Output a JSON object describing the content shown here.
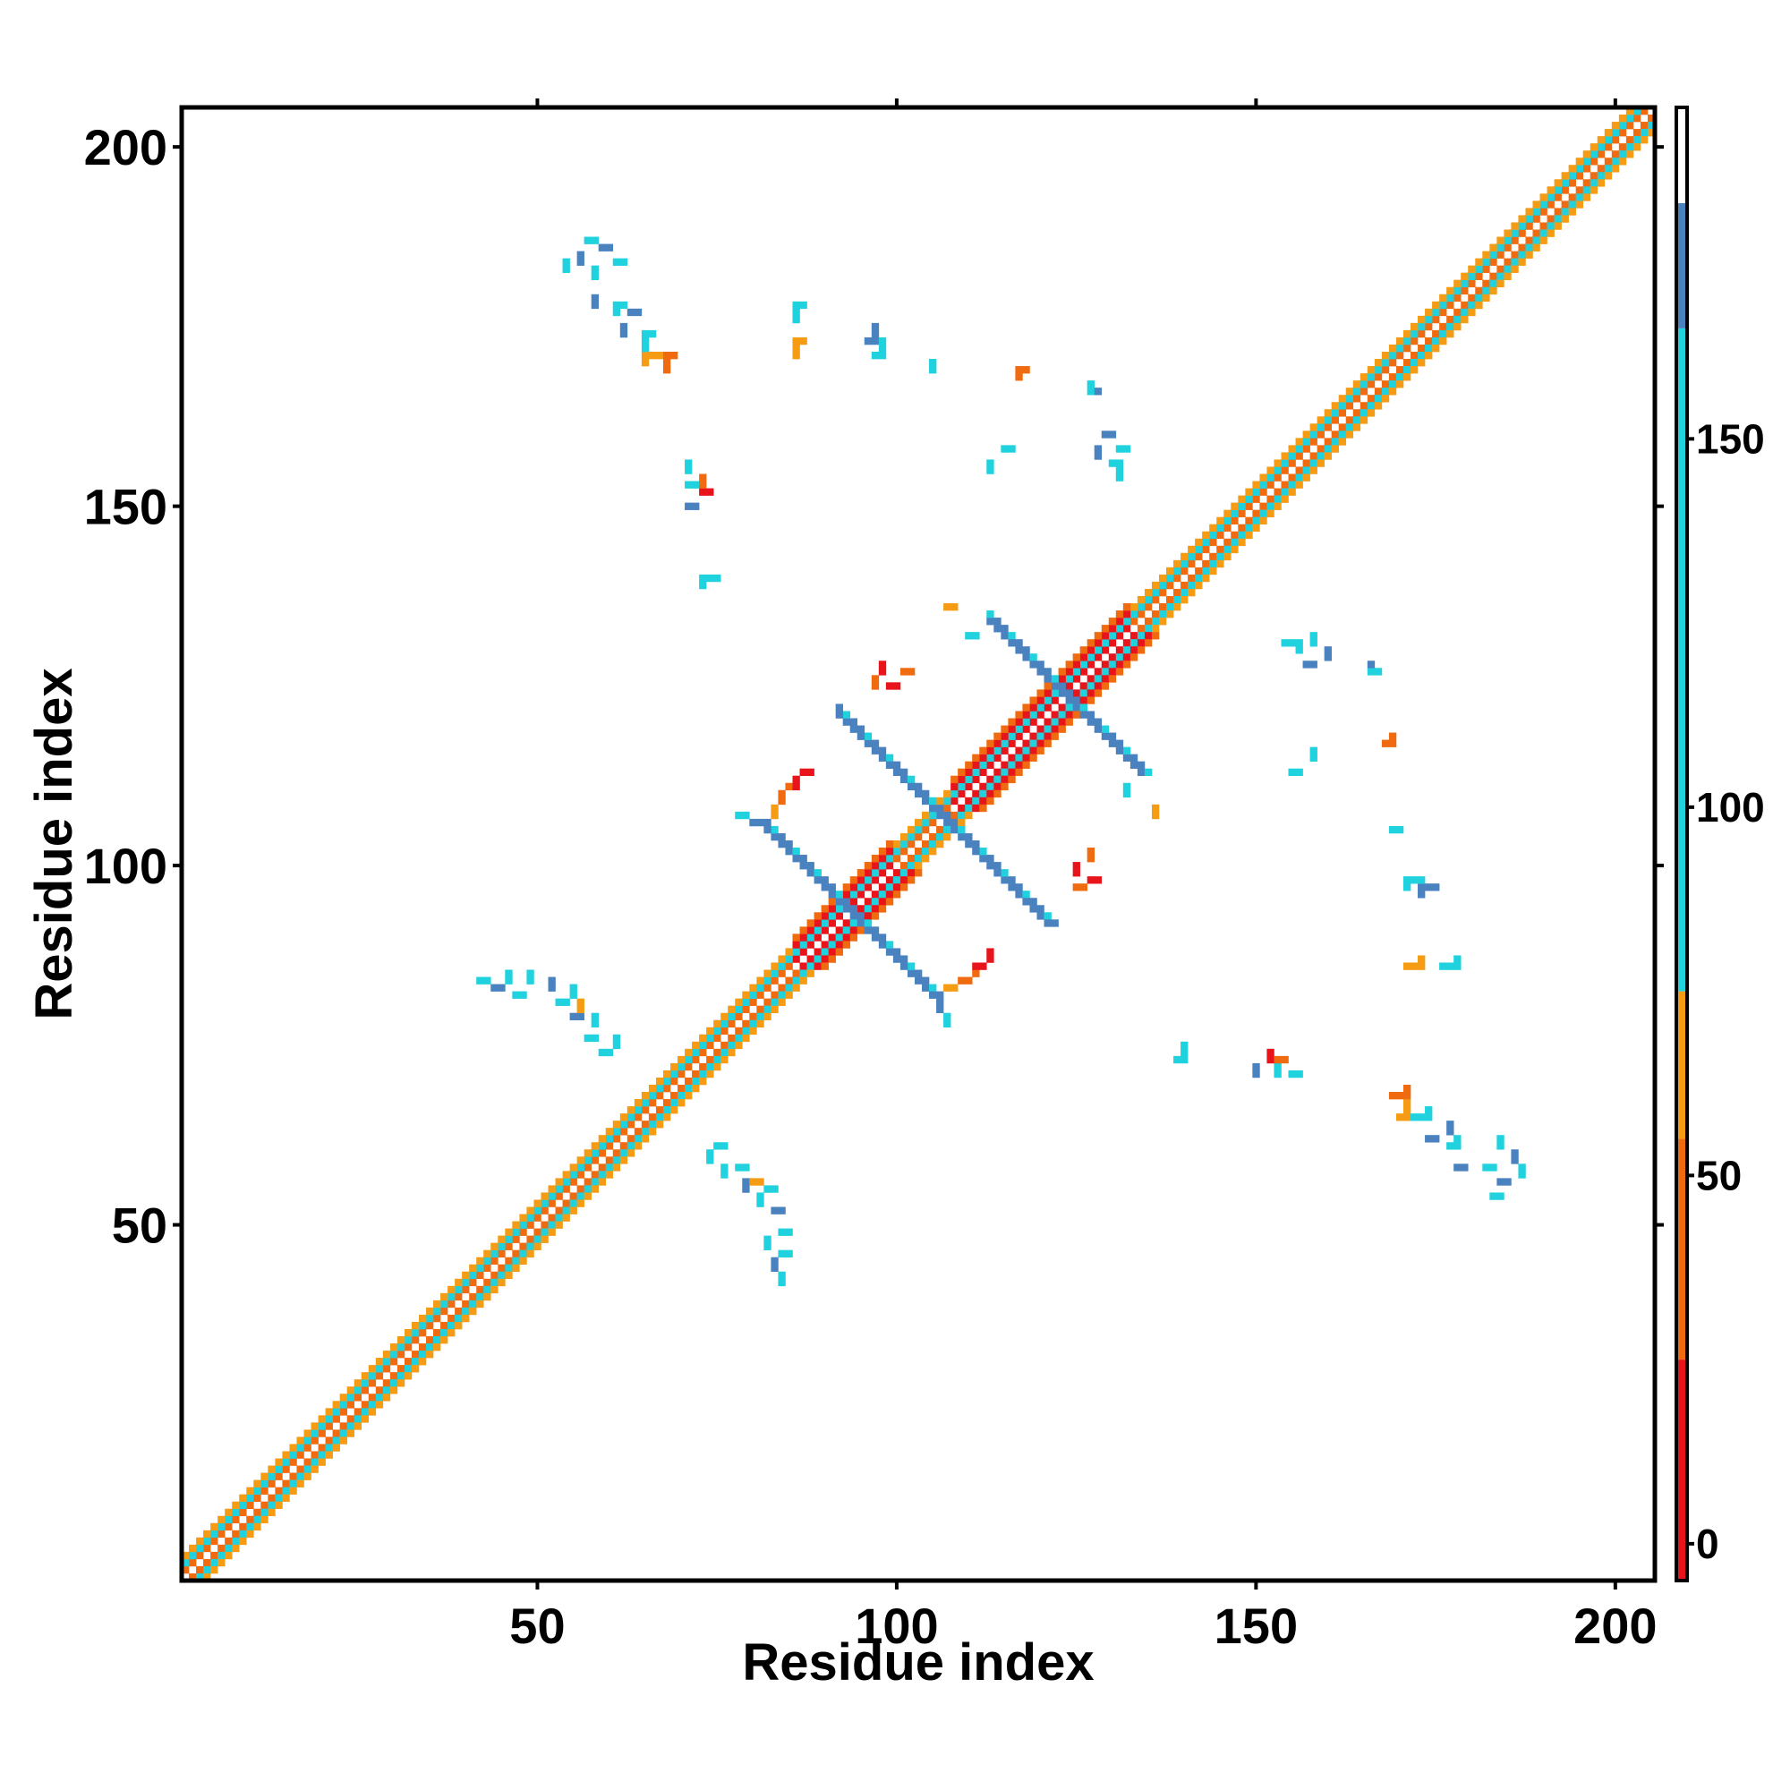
{
  "chart_data": {
    "type": "heatmap",
    "title": "",
    "xlabel": "Residue index",
    "ylabel": "Residue index",
    "xlim": [
      1,
      205
    ],
    "ylim": [
      1,
      205
    ],
    "xticks": [
      50,
      100,
      150,
      200
    ],
    "yticks": [
      50,
      100,
      150,
      200
    ],
    "grid": false,
    "colorbar": {
      "ticks": [
        0,
        50,
        100,
        150
      ],
      "range": [
        -5,
        195
      ],
      "bands": [
        {
          "from": -5,
          "to": 25,
          "color": "#e8141c"
        },
        {
          "from": 25,
          "to": 55,
          "color": "#f06a10"
        },
        {
          "from": 55,
          "to": 75,
          "color": "#f59c14"
        },
        {
          "from": 75,
          "to": 165,
          "color": "#1fd2de"
        },
        {
          "from": 165,
          "to": 182,
          "color": "#4a82c0"
        },
        {
          "from": 182,
          "to": 195,
          "color": "#ffffff"
        }
      ]
    },
    "colors": {
      "red": "#e8141c",
      "orange": "#f06a10",
      "amber": "#f59c14",
      "cyan": "#1fd2de",
      "steel": "#4a82c0"
    },
    "diagonal_band": [
      {
        "x": [
          1,
          205
        ],
        "offset": 1,
        "value": 40
      },
      {
        "x": [
          1,
          205
        ],
        "offset": 2,
        "value": 110
      },
      {
        "x": [
          1,
          205
        ],
        "offset": 3,
        "value": 62
      }
    ],
    "helix_segments": [
      [
        86,
        99
      ],
      [
        108,
        132
      ]
    ],
    "strand_pairs": [
      {
        "i": [
          83,
          105
        ],
        "j": [
          104,
          82
        ],
        "value": 170
      },
      {
        "i": [
          96,
          121
        ],
        "j": [
          117,
          92
        ],
        "value": 170
      },
      {
        "i": [
          113,
          134
        ],
        "j": [
          134,
          112
        ],
        "value": 170
      },
      {
        "i": [
          105,
          120
        ],
        "j": [
          108,
          92
        ],
        "value": 170
      }
    ],
    "contacts": [
      {
        "x": 57,
        "y": 187,
        "v": 120
      },
      {
        "x": 59,
        "y": 186,
        "v": 170
      },
      {
        "x": 61,
        "y": 184,
        "v": 120
      },
      {
        "x": 61,
        "y": 178,
        "v": 120
      },
      {
        "x": 63,
        "y": 177,
        "v": 170
      },
      {
        "x": 65,
        "y": 174,
        "v": 110
      },
      {
        "x": 66,
        "y": 171,
        "v": 65
      },
      {
        "x": 68,
        "y": 171,
        "v": 40
      },
      {
        "x": 86,
        "y": 178,
        "v": 110
      },
      {
        "x": 86,
        "y": 173,
        "v": 65
      },
      {
        "x": 96,
        "y": 173,
        "v": 170
      },
      {
        "x": 97,
        "y": 171,
        "v": 110
      },
      {
        "x": 117,
        "y": 169,
        "v": 40
      },
      {
        "x": 127,
        "y": 166,
        "v": 170
      },
      {
        "x": 129,
        "y": 160,
        "v": 170
      },
      {
        "x": 131,
        "y": 158,
        "v": 110
      },
      {
        "x": 130,
        "y": 156,
        "v": 120
      },
      {
        "x": 115,
        "y": 158,
        "v": 110
      },
      {
        "x": 71,
        "y": 153,
        "v": 110
      },
      {
        "x": 73,
        "y": 152,
        "v": 20
      },
      {
        "x": 71,
        "y": 150,
        "v": 170
      },
      {
        "x": 74,
        "y": 140,
        "v": 120
      },
      {
        "x": 101,
        "y": 127,
        "v": 30
      },
      {
        "x": 99,
        "y": 125,
        "v": 20
      },
      {
        "x": 107,
        "y": 136,
        "v": 65
      },
      {
        "x": 110,
        "y": 132,
        "v": 110
      },
      {
        "x": 87,
        "y": 113,
        "v": 20
      },
      {
        "x": 85,
        "y": 111,
        "v": 40
      },
      {
        "x": 78,
        "y": 107,
        "v": 110
      },
      {
        "x": 80,
        "y": 106,
        "v": 170
      },
      {
        "x": 127,
        "y": 98,
        "v": 20
      },
      {
        "x": 125,
        "y": 97,
        "v": 30
      },
      {
        "x": 111,
        "y": 86,
        "v": 20
      },
      {
        "x": 109,
        "y": 84,
        "v": 30
      },
      {
        "x": 107,
        "y": 83,
        "v": 65
      },
      {
        "x": 42,
        "y": 84,
        "v": 110
      },
      {
        "x": 44,
        "y": 83,
        "v": 170
      },
      {
        "x": 47,
        "y": 82,
        "v": 120
      },
      {
        "x": 53,
        "y": 81,
        "v": 110
      },
      {
        "x": 55,
        "y": 79,
        "v": 170
      },
      {
        "x": 57,
        "y": 76,
        "v": 120
      },
      {
        "x": 59,
        "y": 74,
        "v": 110
      },
      {
        "x": 75,
        "y": 61,
        "v": 120
      },
      {
        "x": 78,
        "y": 58,
        "v": 110
      },
      {
        "x": 80,
        "y": 56,
        "v": 65
      },
      {
        "x": 82,
        "y": 55,
        "v": 110
      },
      {
        "x": 83,
        "y": 52,
        "v": 170
      },
      {
        "x": 84,
        "y": 49,
        "v": 120
      },
      {
        "x": 84,
        "y": 46,
        "v": 110
      },
      {
        "x": 154,
        "y": 131,
        "v": 110
      },
      {
        "x": 157,
        "y": 128,
        "v": 170
      },
      {
        "x": 166,
        "y": 127,
        "v": 110
      },
      {
        "x": 155,
        "y": 113,
        "v": 110
      },
      {
        "x": 168,
        "y": 117,
        "v": 40
      },
      {
        "x": 169,
        "y": 105,
        "v": 120
      },
      {
        "x": 172,
        "y": 98,
        "v": 110
      },
      {
        "x": 174,
        "y": 97,
        "v": 170
      },
      {
        "x": 171,
        "y": 86,
        "v": 65
      },
      {
        "x": 176,
        "y": 86,
        "v": 110
      },
      {
        "x": 139,
        "y": 73,
        "v": 110
      },
      {
        "x": 153,
        "y": 73,
        "v": 40
      },
      {
        "x": 155,
        "y": 71,
        "v": 110
      },
      {
        "x": 169,
        "y": 68,
        "v": 40
      },
      {
        "x": 170,
        "y": 65,
        "v": 65
      },
      {
        "x": 172,
        "y": 65,
        "v": 110
      },
      {
        "x": 174,
        "y": 62,
        "v": 170
      },
      {
        "x": 177,
        "y": 61,
        "v": 110
      },
      {
        "x": 178,
        "y": 58,
        "v": 170
      },
      {
        "x": 182,
        "y": 58,
        "v": 110
      },
      {
        "x": 184,
        "y": 56,
        "v": 170
      },
      {
        "x": 183,
        "y": 54,
        "v": 110
      }
    ]
  }
}
